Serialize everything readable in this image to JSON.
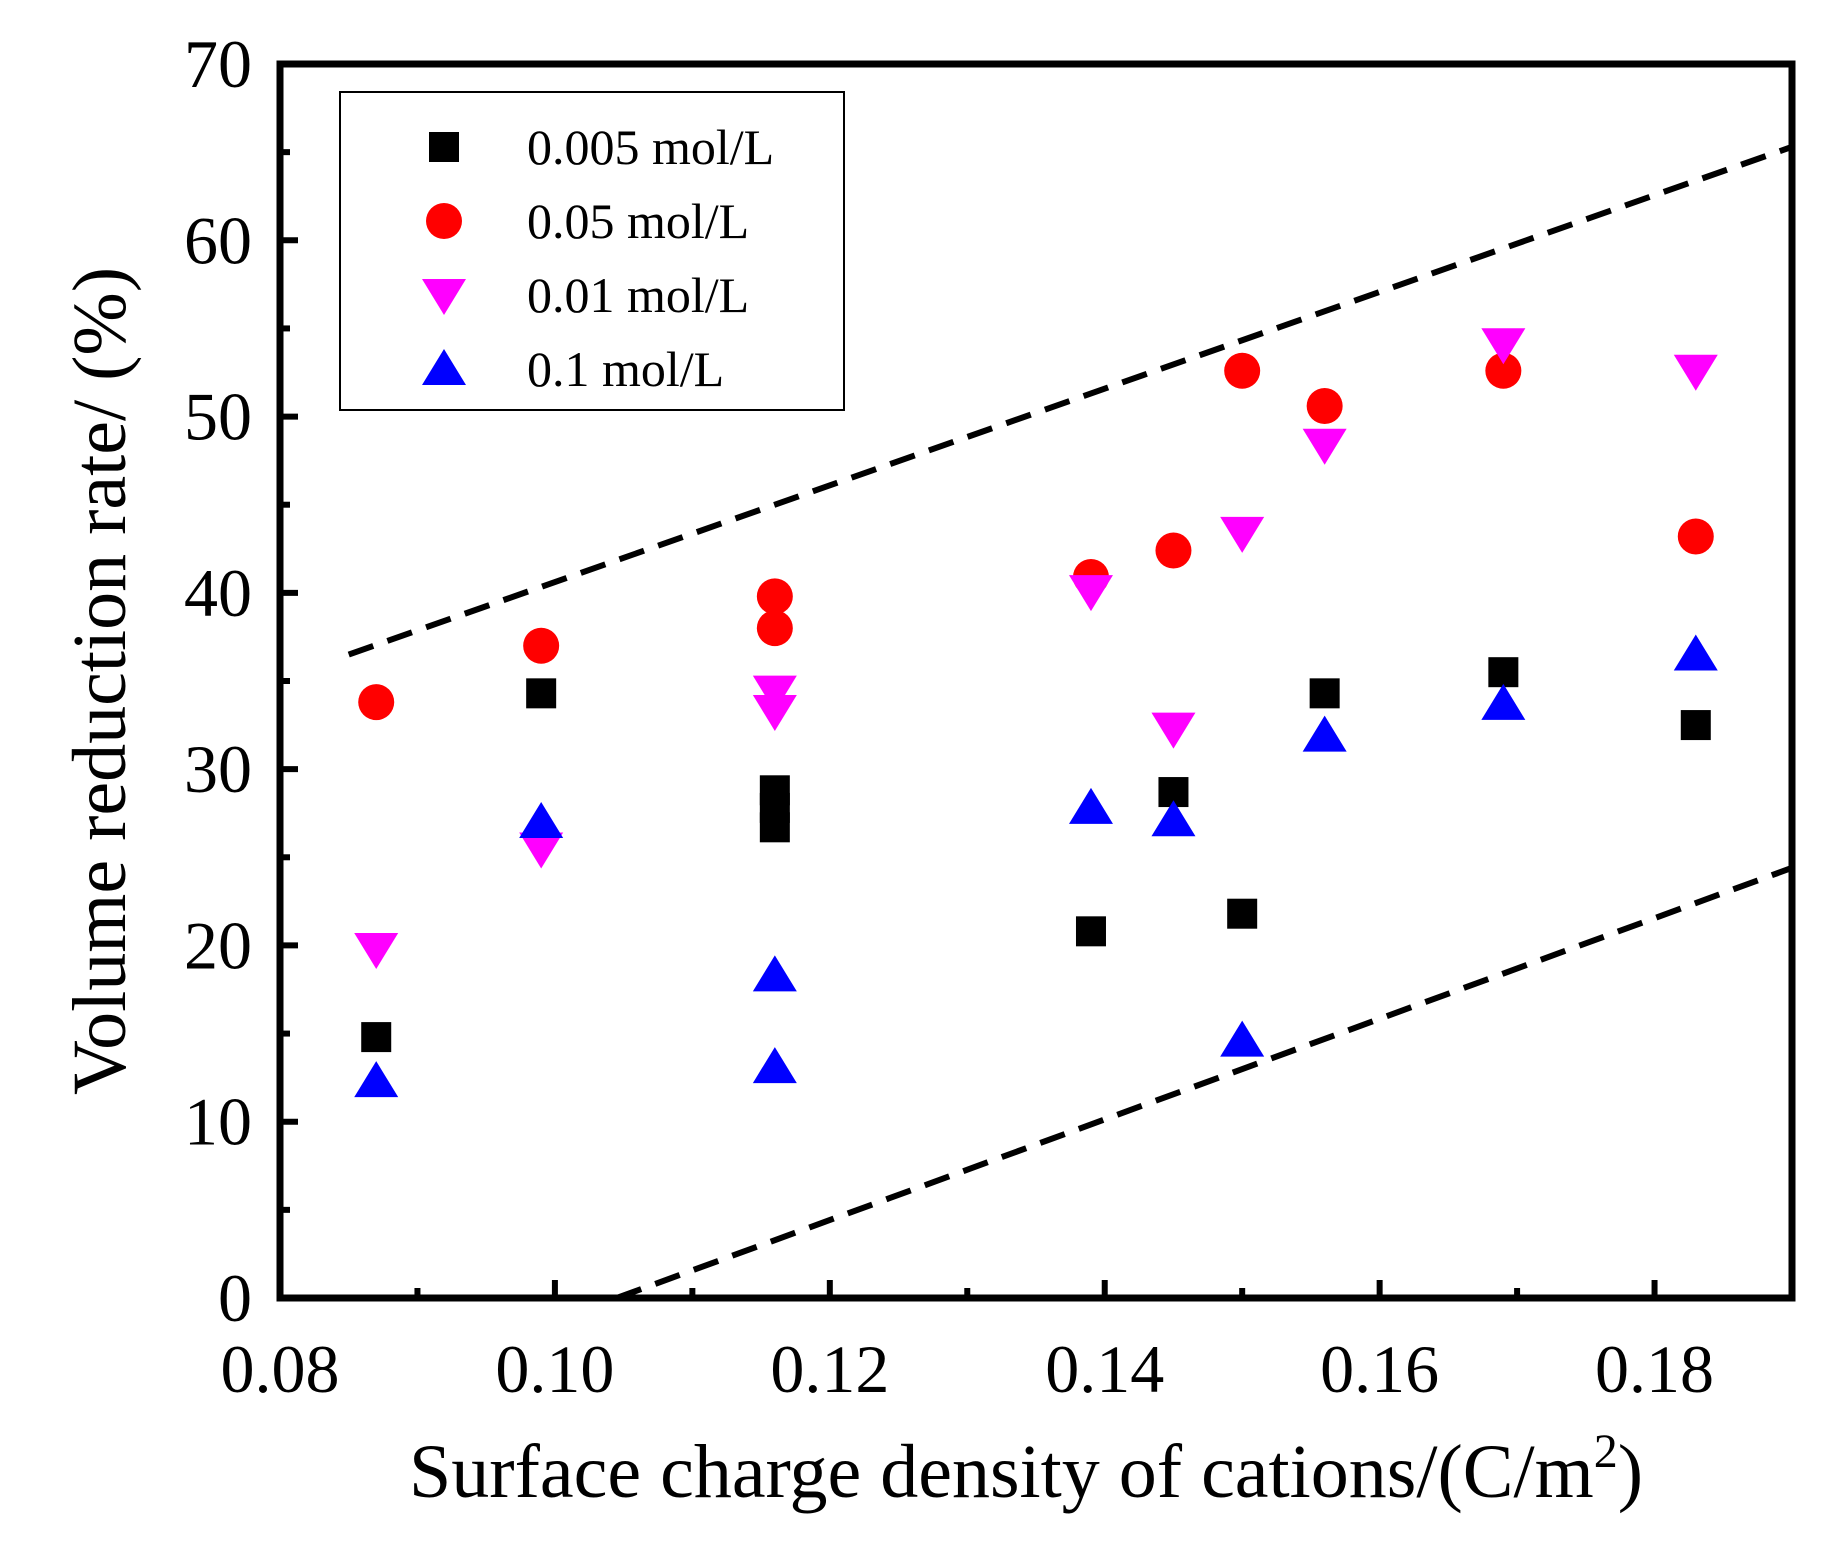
{
  "chart_data": {
    "type": "scatter",
    "title": "",
    "xlabel": "Surface charge density of cations/(C/m",
    "xlabel_superscript": "2",
    "xlabel_suffix": ")",
    "ylabel": "Volume reduction rate/ (%)",
    "xlim": [
      0.08,
      0.19
    ],
    "ylim": [
      0,
      70
    ],
    "xticks": [
      0.08,
      0.1,
      0.12,
      0.14,
      0.16,
      0.18
    ],
    "xtick_labels": [
      "0.08",
      "0.10",
      "0.12",
      "0.14",
      "0.16",
      "0.18"
    ],
    "yticks": [
      0,
      10,
      20,
      30,
      40,
      50,
      60,
      70
    ],
    "ytick_labels": [
      "0",
      "10",
      "20",
      "30",
      "40",
      "50",
      "60",
      "70"
    ],
    "grid": false,
    "legend_position": "top-left",
    "series": [
      {
        "name": "0.005 mol/L",
        "marker": "square",
        "color": "#000000",
        "points": [
          [
            0.087,
            14.8
          ],
          [
            0.099,
            34.3
          ],
          [
            0.116,
            28.8
          ],
          [
            0.116,
            27.8
          ],
          [
            0.116,
            26.7
          ],
          [
            0.139,
            20.8
          ],
          [
            0.145,
            28.7
          ],
          [
            0.15,
            21.8
          ],
          [
            0.156,
            34.3
          ],
          [
            0.169,
            35.5
          ],
          [
            0.183,
            32.5
          ]
        ]
      },
      {
        "name": "0.05 mol/L",
        "marker": "circle",
        "color": "#ff0000",
        "points": [
          [
            0.087,
            33.8
          ],
          [
            0.099,
            37.0
          ],
          [
            0.116,
            39.8
          ],
          [
            0.116,
            38.0
          ],
          [
            0.139,
            40.9
          ],
          [
            0.145,
            42.4
          ],
          [
            0.15,
            52.6
          ],
          [
            0.156,
            50.6
          ],
          [
            0.169,
            52.6
          ],
          [
            0.183,
            43.2
          ]
        ]
      },
      {
        "name": "0.01 mol/L",
        "marker": "triangle-down",
        "color": "#ff00ff",
        "points": [
          [
            0.087,
            19.8
          ],
          [
            0.099,
            25.5
          ],
          [
            0.116,
            34.4
          ],
          [
            0.116,
            33.3
          ],
          [
            0.139,
            40.1
          ],
          [
            0.145,
            32.3
          ],
          [
            0.15,
            43.4
          ],
          [
            0.156,
            48.4
          ],
          [
            0.169,
            54.1
          ],
          [
            0.183,
            52.6
          ]
        ]
      },
      {
        "name": "0.1 mol/L",
        "marker": "triangle-up",
        "color": "#0000ff",
        "points": [
          [
            0.087,
            12.3
          ],
          [
            0.099,
            27.0
          ],
          [
            0.116,
            18.3
          ],
          [
            0.116,
            13.1
          ],
          [
            0.139,
            27.8
          ],
          [
            0.145,
            27.1
          ],
          [
            0.15,
            14.6
          ],
          [
            0.156,
            31.9
          ],
          [
            0.169,
            33.7
          ],
          [
            0.183,
            36.5
          ]
        ]
      }
    ],
    "reference_lines": [
      {
        "name": "upper-bound",
        "style": "dashed",
        "color": "#000000",
        "from": [
          0.085,
          36.5
        ],
        "to": [
          0.19,
          65.3
        ]
      },
      {
        "name": "lower-bound",
        "style": "dashed",
        "color": "#000000",
        "from": [
          0.1045,
          0.0
        ],
        "to": [
          0.19,
          24.4
        ]
      }
    ]
  }
}
